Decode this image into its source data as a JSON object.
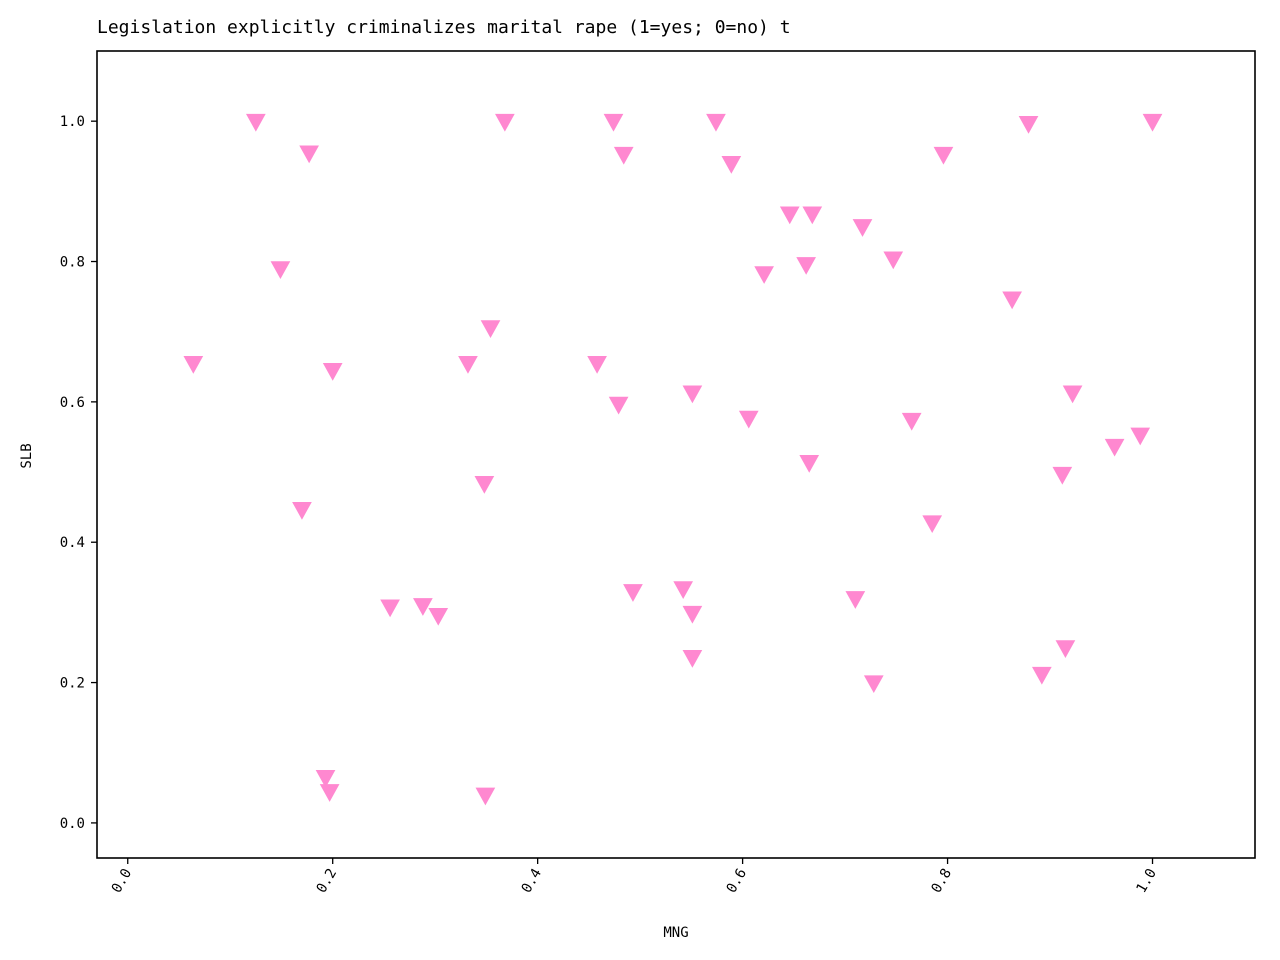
{
  "chart_data": {
    "type": "scatter",
    "title": "Legislation explicitly criminalizes marital rape (1=yes; 0=no) t",
    "xlabel": "MNG",
    "ylabel": "SLB",
    "xlim": [
      -0.03,
      1.1
    ],
    "ylim": [
      -0.05,
      1.1
    ],
    "xticks": [
      "0.0",
      "0.2",
      "0.4",
      "0.6",
      "0.8",
      "1.0"
    ],
    "yticks": [
      "0.0",
      "0.2",
      "0.4",
      "0.6",
      "0.8",
      "1.0"
    ],
    "marker": "triangle-down",
    "color": "#ff88d0",
    "grid": false,
    "points": [
      {
        "x": 0.125,
        "y": 1.0
      },
      {
        "x": 0.177,
        "y": 0.955
      },
      {
        "x": 0.368,
        "y": 1.0
      },
      {
        "x": 0.474,
        "y": 1.0
      },
      {
        "x": 0.484,
        "y": 0.953
      },
      {
        "x": 0.574,
        "y": 1.0
      },
      {
        "x": 0.589,
        "y": 0.94
      },
      {
        "x": 0.796,
        "y": 0.953
      },
      {
        "x": 0.879,
        "y": 0.997
      },
      {
        "x": 1.0,
        "y": 1.0
      },
      {
        "x": 0.646,
        "y": 0.868
      },
      {
        "x": 0.668,
        "y": 0.868
      },
      {
        "x": 0.717,
        "y": 0.85
      },
      {
        "x": 0.747,
        "y": 0.804
      },
      {
        "x": 0.662,
        "y": 0.796
      },
      {
        "x": 0.621,
        "y": 0.783
      },
      {
        "x": 0.149,
        "y": 0.79
      },
      {
        "x": 0.863,
        "y": 0.747
      },
      {
        "x": 0.354,
        "y": 0.706
      },
      {
        "x": 0.064,
        "y": 0.655
      },
      {
        "x": 0.2,
        "y": 0.645
      },
      {
        "x": 0.332,
        "y": 0.655
      },
      {
        "x": 0.458,
        "y": 0.655
      },
      {
        "x": 0.479,
        "y": 0.597
      },
      {
        "x": 0.551,
        "y": 0.613
      },
      {
        "x": 0.606,
        "y": 0.577
      },
      {
        "x": 0.765,
        "y": 0.574
      },
      {
        "x": 0.922,
        "y": 0.613
      },
      {
        "x": 0.988,
        "y": 0.553
      },
      {
        "x": 0.963,
        "y": 0.537
      },
      {
        "x": 0.912,
        "y": 0.497
      },
      {
        "x": 0.665,
        "y": 0.514
      },
      {
        "x": 0.348,
        "y": 0.484
      },
      {
        "x": 0.17,
        "y": 0.447
      },
      {
        "x": 0.785,
        "y": 0.428
      },
      {
        "x": 0.256,
        "y": 0.308
      },
      {
        "x": 0.288,
        "y": 0.31
      },
      {
        "x": 0.303,
        "y": 0.296
      },
      {
        "x": 0.493,
        "y": 0.33
      },
      {
        "x": 0.542,
        "y": 0.334
      },
      {
        "x": 0.551,
        "y": 0.299
      },
      {
        "x": 0.71,
        "y": 0.32
      },
      {
        "x": 0.551,
        "y": 0.236
      },
      {
        "x": 0.728,
        "y": 0.2
      },
      {
        "x": 0.892,
        "y": 0.212
      },
      {
        "x": 0.915,
        "y": 0.25
      },
      {
        "x": 0.193,
        "y": 0.065
      },
      {
        "x": 0.197,
        "y": 0.045
      },
      {
        "x": 0.349,
        "y": 0.04
      }
    ]
  }
}
